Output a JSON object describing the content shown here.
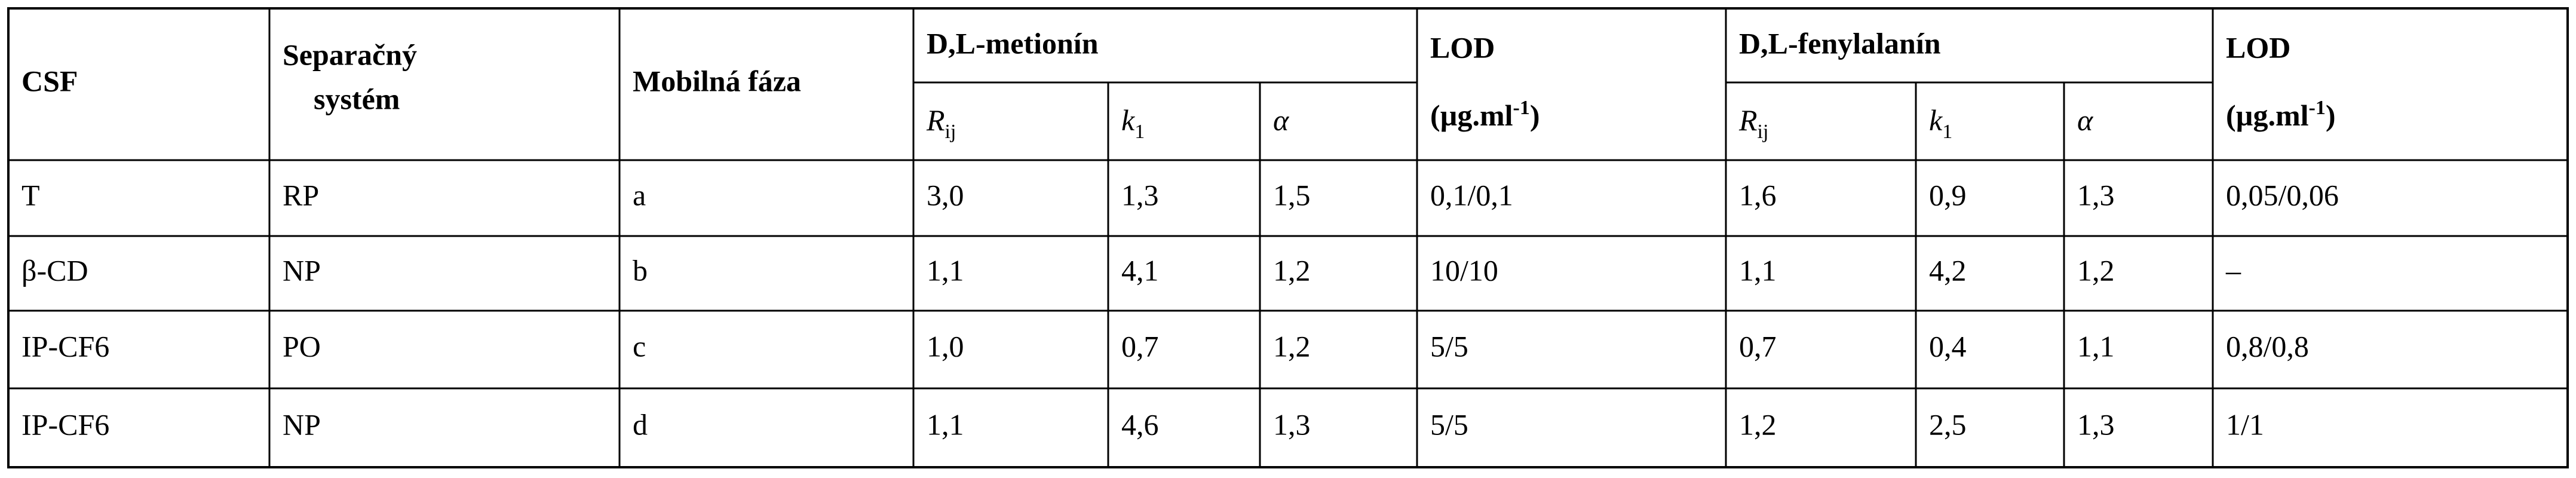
{
  "table": {
    "header": {
      "csf": "CSF",
      "system": [
        "Separačný",
        "systém"
      ],
      "phase": "Mobilná fáza",
      "groups": [
        "D,L-metionín",
        "D,L-fenylalanín"
      ],
      "params": [
        {
          "main": "R",
          "sub": "ij"
        },
        {
          "main": "k",
          "sub": "1"
        },
        {
          "main": "α"
        }
      ],
      "lod": "LOD",
      "lod_unit": [
        "(µg.ml",
        "-1",
        ")"
      ]
    },
    "rows": [
      [
        "T",
        "RP",
        "a",
        "3,0",
        "1,3",
        "1,5",
        "0,1/0,1",
        "1,6",
        "0,9",
        "1,3",
        "0,05/0,06"
      ],
      [
        "β-CD",
        "NP",
        "b",
        "1,1",
        "4,1",
        "1,2",
        "10/10",
        "1,1",
        "4,2",
        "1,2",
        "–"
      ],
      [
        "IP-CF6",
        "PO",
        "c",
        "1,0",
        "0,7",
        "1,2",
        "5/5",
        "0,7",
        "0,4",
        "1,1",
        "0,8/0,8"
      ],
      [
        "IP-CF6",
        "NP",
        "d",
        "1,1",
        "4,6",
        "1,3",
        "5/5",
        "1,2",
        "2,5",
        "1,3",
        "1/1"
      ]
    ]
  }
}
